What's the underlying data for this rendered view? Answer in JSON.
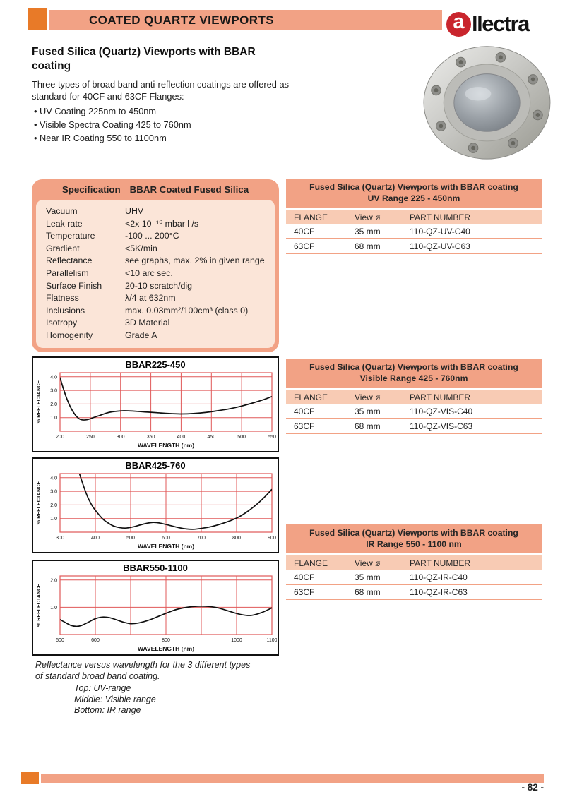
{
  "header": {
    "title": "COATED QUARTZ VIEWPORTS"
  },
  "logo": {
    "initial": "a",
    "rest": "llectra"
  },
  "intro": {
    "title": "Fused Silica (Quartz) Viewports with BBAR coating",
    "paragraph": "Three types of broad band anti-reflection coatings are offered as standard for 40CF and 63CF Flanges:",
    "bullets": [
      "UV Coating 225nm to 450nm",
      "Visible Spectra Coating 425 to 760nm",
      "Near IR Coating 550 to 1100nm"
    ]
  },
  "spec_box": {
    "title_left": "Specification",
    "title_right": "BBAR Coated Fused Silica",
    "rows": [
      {
        "label": "Vacuum",
        "value": "UHV"
      },
      {
        "label": "Leak rate",
        "value": "<2x 10⁻¹⁰ mbar l /s"
      },
      {
        "label": "Temperature",
        "value": "-100 ... 200°C"
      },
      {
        "label": "Gradient",
        "value": "<5K/min"
      },
      {
        "label": "Reflectance",
        "value": "see graphs, max. 2% in given range"
      },
      {
        "label": "Parallelism",
        "value": "<10 arc sec."
      },
      {
        "label": "Surface Finish",
        "value": "20-10 scratch/dig"
      },
      {
        "label": "Flatness",
        "value": "λ/4 at 632nm"
      },
      {
        "label": "Inclusions",
        "value": "max. 0.03mm²/100cm³ (class 0)"
      },
      {
        "label": "Isotropy",
        "value": "3D Material"
      },
      {
        "label": "Homogenity",
        "value": "Grade A"
      }
    ]
  },
  "tables": [
    {
      "title_line1": "Fused Silica (Quartz) Viewports with BBAR coating",
      "title_line2": "UV Range 225 - 450nm",
      "columns": [
        "FLANGE",
        "View ø",
        "PART NUMBER"
      ],
      "rows": [
        [
          "40CF",
          "35 mm",
          "110-QZ-UV-C40"
        ],
        [
          "63CF",
          "68 mm",
          "110-QZ-UV-C63"
        ]
      ]
    },
    {
      "title_line1": "Fused Silica (Quartz) Viewports with BBAR coating",
      "title_line2": "Visible Range 425 - 760nm",
      "columns": [
        "FLANGE",
        "View ø",
        "PART NUMBER"
      ],
      "rows": [
        [
          "40CF",
          "35 mm",
          "110-QZ-VIS-C40"
        ],
        [
          "63CF",
          "68 mm",
          "110-QZ-VIS-C63"
        ]
      ]
    },
    {
      "title_line1": "Fused Silica (Quartz) Viewports with BBAR coating",
      "title_line2": "IR Range 550 - 1100 nm",
      "columns": [
        "FLANGE",
        "View ø",
        "PART NUMBER"
      ],
      "rows": [
        [
          "40CF",
          "35 mm",
          "110-QZ-IR-C40"
        ],
        [
          "63CF",
          "68 mm",
          "110-QZ-IR-C63"
        ]
      ]
    }
  ],
  "caption": {
    "line1": "Reflectance versus wavelength for the 3 different types",
    "line2": "of standard broad band coating.",
    "sub": [
      "Top: UV-range",
      "Middle: Visible range",
      "Bottom: IR range"
    ]
  },
  "footer": {
    "page_number": "- 82 -"
  },
  "colors": {
    "accent_orange": "#e87a28",
    "band_salmon": "#f2a285",
    "table_header_salmon": "#f8cbb4",
    "spec_fill_pink": "#fbe5d8",
    "grid_red": "#e05858",
    "logo_red": "#c9252d"
  },
  "chart_data": [
    {
      "type": "line",
      "title": "BBAR225-450",
      "xlabel": "WAVELENGTH (nm)",
      "ylabel": "% REFLECTANCE",
      "xlim": [
        200,
        550
      ],
      "ylim": [
        0,
        4.3
      ],
      "xticks": [
        200,
        250,
        300,
        350,
        400,
        450,
        500,
        550
      ],
      "yticks": [
        1.0,
        2.0,
        3.0,
        4.0
      ],
      "x": [
        200,
        205,
        212,
        220,
        228,
        235,
        245,
        255,
        265,
        278,
        290,
        305,
        320,
        340,
        360,
        380,
        400,
        420,
        440,
        460,
        480,
        500,
        520,
        535,
        550
      ],
      "y": [
        3.95,
        3.2,
        2.3,
        1.55,
        1.05,
        0.85,
        0.85,
        1.0,
        1.15,
        1.35,
        1.45,
        1.5,
        1.48,
        1.42,
        1.36,
        1.3,
        1.27,
        1.3,
        1.38,
        1.5,
        1.65,
        1.85,
        2.1,
        2.3,
        2.55
      ]
    },
    {
      "type": "line",
      "title": "BBAR425-760",
      "xlabel": "WAVELENGTH (nm)",
      "ylabel": "% REFLECTANCE",
      "xlim": [
        300,
        900
      ],
      "ylim": [
        0,
        4.3
      ],
      "xticks": [
        300,
        400,
        500,
        600,
        700,
        800,
        900
      ],
      "yticks": [
        1.0,
        2.0,
        3.0,
        4.0
      ],
      "x": [
        355,
        365,
        378,
        392,
        408,
        422,
        438,
        452,
        468,
        485,
        505,
        525,
        545,
        565,
        585,
        610,
        635,
        658,
        680,
        705,
        730,
        755,
        780,
        805,
        830,
        855,
        880,
        900
      ],
      "y": [
        4.3,
        3.5,
        2.6,
        1.9,
        1.35,
        0.95,
        0.65,
        0.45,
        0.34,
        0.3,
        0.38,
        0.52,
        0.65,
        0.72,
        0.66,
        0.5,
        0.34,
        0.24,
        0.22,
        0.3,
        0.42,
        0.6,
        0.82,
        1.1,
        1.5,
        2.0,
        2.6,
        3.15
      ]
    },
    {
      "type": "line",
      "title": "BBAR550-1100",
      "xlabel": "WAVELENGTH (nm)",
      "ylabel": "% REFLECTANCE",
      "xlim": [
        500,
        1100
      ],
      "ylim": [
        0,
        2.15
      ],
      "xticks": [
        500,
        600,
        700,
        800,
        900,
        1000,
        1100
      ],
      "xtick_labels": [
        "500",
        "600",
        "",
        "800",
        "",
        "1000",
        "1100"
      ],
      "yticks": [
        1.0,
        2.0
      ],
      "x": [
        500,
        515,
        530,
        545,
        560,
        580,
        600,
        620,
        640,
        660,
        680,
        700,
        720,
        745,
        770,
        800,
        830,
        860,
        890,
        920,
        950,
        980,
        1010,
        1040,
        1070,
        1100
      ],
      "y": [
        0.55,
        0.44,
        0.34,
        0.3,
        0.33,
        0.45,
        0.58,
        0.64,
        0.62,
        0.54,
        0.45,
        0.4,
        0.42,
        0.5,
        0.62,
        0.78,
        0.92,
        1.0,
        1.04,
        1.03,
        0.97,
        0.85,
        0.74,
        0.7,
        0.8,
        0.98
      ]
    }
  ]
}
